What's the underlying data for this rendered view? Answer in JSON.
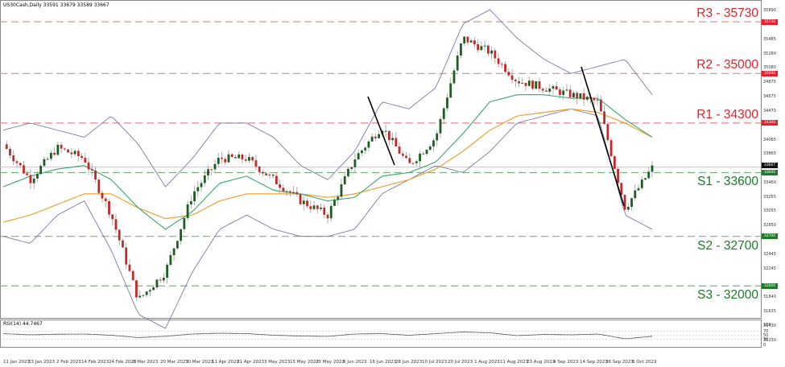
{
  "header": {
    "symbol_info": "US30Cash,Daily  33591 33679 33589 33667"
  },
  "rsi": {
    "title": "RSI(14) 44.7467",
    "levels": [
      "100",
      "70",
      "50",
      "30",
      "0"
    ]
  },
  "levels": [
    {
      "id": "R3",
      "label": "R3 - 35730",
      "value": 35730,
      "color": "#e8202a",
      "line": "#d88a8a"
    },
    {
      "id": "R2",
      "label": "R2 - 35000",
      "value": 35000,
      "color": "#e8202a",
      "line": "#d88a8a"
    },
    {
      "id": "R1",
      "label": "R1 - 34300",
      "value": 34300,
      "color": "#e8202a",
      "line": "#d88a8a"
    },
    {
      "id": "S1",
      "label": "S1 - 33600",
      "value": 33600,
      "color": "#1e7a2a",
      "line": "#7bb07e"
    },
    {
      "id": "S2",
      "label": "S2 - 32700",
      "value": 32700,
      "color": "#1e7a2a",
      "line": "#7bb07e"
    },
    {
      "id": "S3",
      "label": "S3 - 32000",
      "value": 32000,
      "color": "#1e7a2a",
      "line": "#7bb07e"
    }
  ],
  "price_axis": {
    "ticks": [
      "35890",
      "35485",
      "35280",
      "35080",
      "34875",
      "34675",
      "34470",
      "34065",
      "33865",
      "33460",
      "33255",
      "33055",
      "32850",
      "32445",
      "32245",
      "31840",
      "31635",
      "31430",
      "31230"
    ],
    "tags": [
      {
        "text": "35730",
        "value": 35730,
        "bg": "#e8202a"
      },
      {
        "text": "35000",
        "value": 35000,
        "bg": "#e8202a"
      },
      {
        "text": "34300",
        "value": 34300,
        "bg": "#e8202a"
      },
      {
        "text": "33667",
        "value": 33700,
        "bg": "#111111"
      },
      {
        "text": "33600",
        "value": 33600,
        "bg": "#1e7a2a"
      },
      {
        "text": "32700",
        "value": 32700,
        "bg": "#1e7a2a"
      },
      {
        "text": "32000",
        "value": 32000,
        "bg": "#1e7a2a"
      }
    ]
  },
  "date_axis": [
    "11 Jan 2023",
    "23 Jan 2023",
    "2 Feb 2023",
    "14 Feb 2023",
    "24 Feb 2023",
    "8 Mar 2023",
    "20 Mar 2023",
    "30 Mar 2023",
    "11 Apr 2023",
    "21 Apr 2023",
    "3 May 2023",
    "15 May 2023",
    "25 May 2023",
    "6 Jun 2023",
    "16 Jun 2023",
    "28 Jun 2023",
    "10 Jul 2023",
    "20 Jul 2023",
    "1 Aug 2023",
    "11 Aug 2023",
    "23 Aug 2023",
    "4 Sep 2023",
    "14 Sep 2023",
    "26 Sep 2023",
    "6 Oct 2023"
  ],
  "colors": {
    "bull": "#1b5e20",
    "bear": "#c62828",
    "wick": "#999999",
    "bollinger": "#7a7aa8",
    "ma_fast": "#3aa56a",
    "ma_slow": "#f0a030",
    "trendline": "#000000"
  },
  "chart_data": {
    "type": "line",
    "title": "US30Cash, Daily",
    "subtitle": "O 33591 H 33679 L 33589 C 33667",
    "xlabel": "",
    "ylabel": "",
    "ylim": [
      31230,
      35890
    ],
    "grid": false,
    "candlestick": true,
    "x": [
      "11 Jan 2023",
      "23 Jan 2023",
      "2 Feb 2023",
      "14 Feb 2023",
      "24 Feb 2023",
      "8 Mar 2023",
      "20 Mar 2023",
      "30 Mar 2023",
      "11 Apr 2023",
      "21 Apr 2023",
      "3 May 2023",
      "15 May 2023",
      "25 May 2023",
      "6 Jun 2023",
      "16 Jun 2023",
      "28 Jun 2023",
      "10 Jul 2023",
      "20 Jul 2023",
      "1 Aug 2023",
      "11 Aug 2023",
      "23 Aug 2023",
      "4 Sep 2023",
      "14 Sep 2023",
      "26 Sep 2023",
      "6 Oct 2023"
    ],
    "series": [
      {
        "name": "Close (approx.)",
        "values": [
          34000,
          33500,
          33950,
          33800,
          33000,
          31800,
          32200,
          33300,
          33800,
          33800,
          33500,
          33200,
          33000,
          33800,
          34250,
          33700,
          34100,
          35500,
          35300,
          34900,
          34800,
          34700,
          34600,
          33100,
          33667
        ]
      },
      {
        "name": "MA fast (green)",
        "values": [
          33400,
          33550,
          33650,
          33700,
          33500,
          33100,
          32800,
          33050,
          33450,
          33550,
          33350,
          33300,
          33200,
          33250,
          33550,
          33600,
          33750,
          34150,
          34600,
          34700,
          34700,
          34650,
          34650,
          34350,
          34100
        ]
      },
      {
        "name": "MA slow (orange)",
        "values": [
          32900,
          33000,
          33150,
          33300,
          33300,
          33100,
          32950,
          33000,
          33200,
          33300,
          33300,
          33300,
          33250,
          33300,
          33400,
          33500,
          33650,
          33900,
          34200,
          34400,
          34450,
          34500,
          34450,
          34300,
          34100
        ]
      },
      {
        "name": "Bollinger upper",
        "values": [
          34200,
          34300,
          34200,
          34100,
          34400,
          34000,
          33400,
          33800,
          34300,
          34300,
          34100,
          33700,
          33500,
          33900,
          34600,
          34500,
          34800,
          35700,
          35900,
          35500,
          35200,
          35000,
          35100,
          35200,
          34700
        ]
      },
      {
        "name": "Bollinger lower",
        "values": [
          32700,
          32600,
          33000,
          33200,
          32500,
          31600,
          31400,
          32200,
          32800,
          33000,
          32800,
          32700,
          32700,
          32800,
          33300,
          33500,
          33700,
          33600,
          33900,
          34300,
          34400,
          34500,
          34400,
          33000,
          32800
        ]
      },
      {
        "name": "RSI(14)",
        "values": [
          58,
          52,
          55,
          56,
          50,
          38,
          45,
          56,
          60,
          58,
          50,
          46,
          44,
          56,
          58,
          50,
          58,
          66,
          62,
          48,
          54,
          52,
          56,
          32,
          44.7467
        ]
      }
    ],
    "horizontal_levels": [
      {
        "label": "R3 - 35730",
        "value": 35730
      },
      {
        "label": "R2 - 35000",
        "value": 35000
      },
      {
        "label": "R1 - 34300",
        "value": 34300
      },
      {
        "label": "S1 - 33600",
        "value": 33600
      },
      {
        "label": "S2 - 32700",
        "value": 32700
      },
      {
        "label": "S3 - 32000",
        "value": 32000
      }
    ],
    "last_price": 33667,
    "indicator": {
      "name": "RSI(14)",
      "value": 44.7467,
      "ylim": [
        0,
        100
      ],
      "levels": [
        30,
        50,
        70
      ]
    }
  }
}
